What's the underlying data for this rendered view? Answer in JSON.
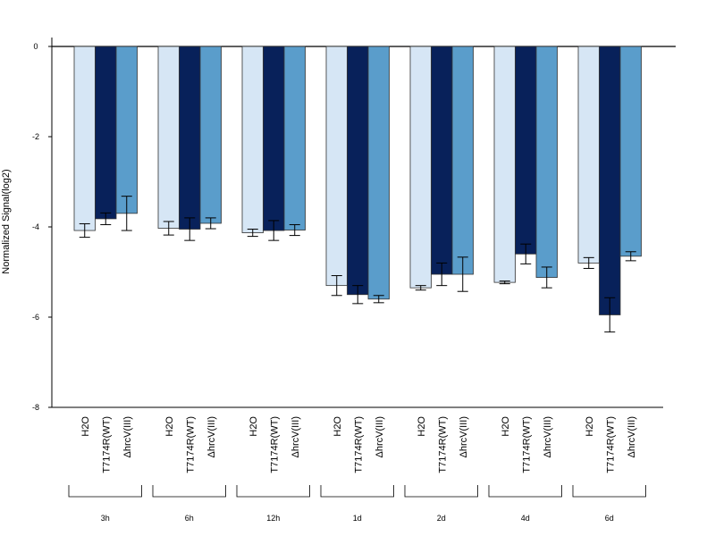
{
  "chart_data": {
    "type": "bar",
    "ylabel": "Normalized Signal(log2)",
    "ylim": [
      -8,
      0
    ],
    "yticks": [
      0,
      -2,
      -4,
      -6,
      -8
    ],
    "groups": [
      "3h",
      "6h",
      "12h",
      "1d",
      "2d",
      "4d",
      "6d"
    ],
    "series": [
      {
        "name": "H2O",
        "color": "#d6e6f5",
        "values": [
          -4.08,
          -4.03,
          -4.13,
          -5.3,
          -5.35,
          -5.23,
          -4.8
        ],
        "errors": [
          0.15,
          0.15,
          0.08,
          0.22,
          0.05,
          0.03,
          0.12
        ]
      },
      {
        "name": "T7174R(WT)",
        "color": "#08215a",
        "values": [
          -3.82,
          -4.05,
          -4.08,
          -5.5,
          -5.05,
          -4.6,
          -5.95
        ],
        "errors": [
          0.13,
          0.25,
          0.22,
          0.2,
          0.25,
          0.22,
          0.38
        ]
      },
      {
        "name": "ΔhrcV(III)",
        "color": "#5a9dcb",
        "values": [
          -3.7,
          -3.92,
          -4.07,
          -5.6,
          -5.05,
          -5.12,
          -4.65
        ],
        "errors": [
          0.38,
          0.12,
          0.12,
          0.08,
          0.38,
          0.23,
          0.1
        ]
      }
    ],
    "grid": false,
    "legend": "none"
  }
}
